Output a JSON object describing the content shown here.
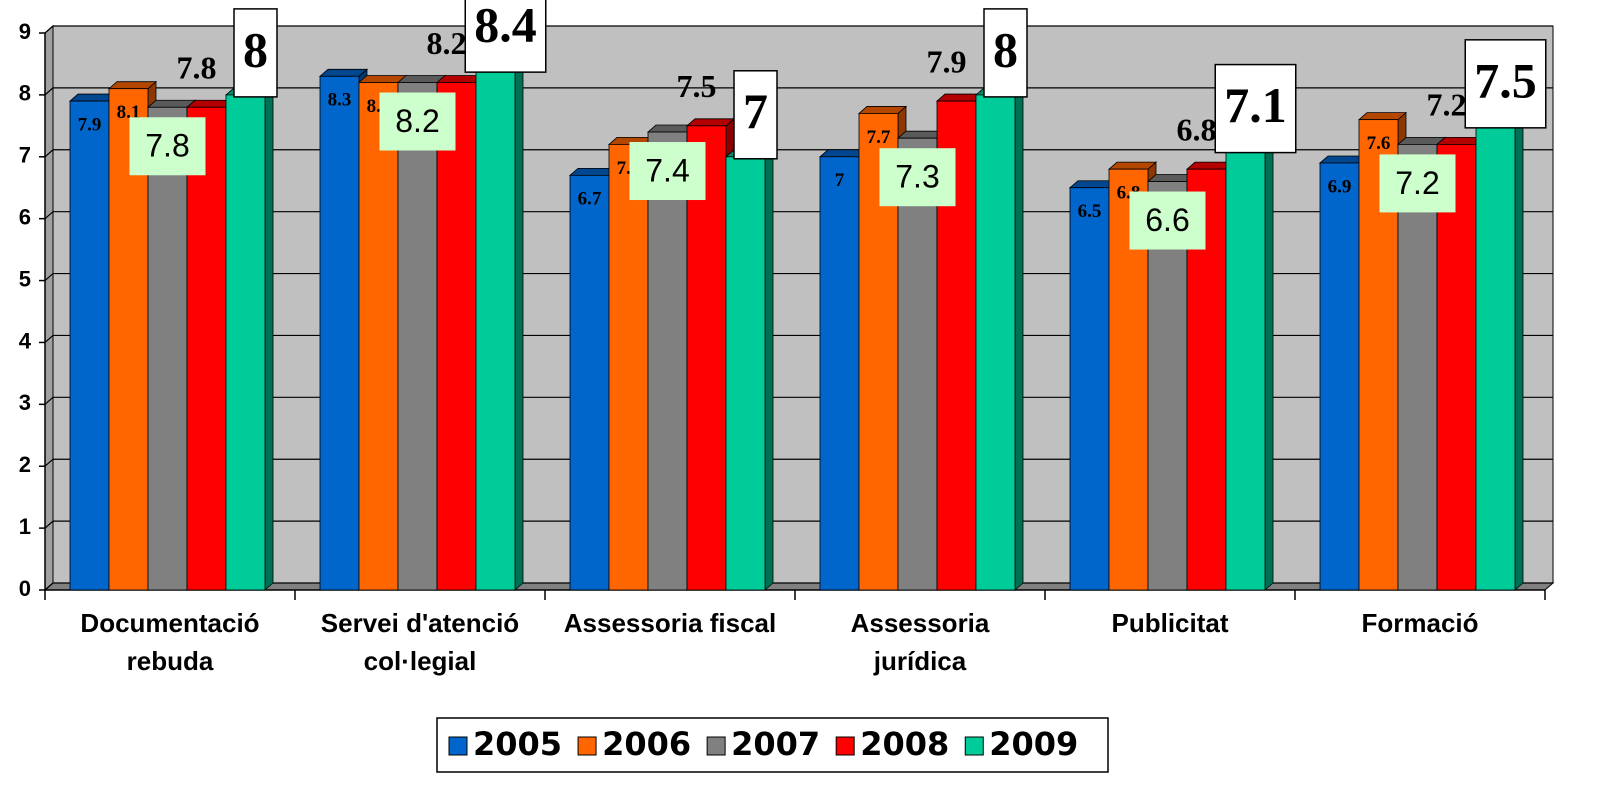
{
  "chart_data": {
    "type": "bar3d",
    "categories": [
      [
        "Documentació",
        "rebuda"
      ],
      [
        "Servei d'atenció",
        "col·legial"
      ],
      [
        "Assessoria fiscal"
      ],
      [
        "Assessoria",
        "jurídica"
      ],
      [
        "Publicitat"
      ],
      [
        "Formació"
      ]
    ],
    "series": [
      {
        "name": "2005",
        "color": "#0066cc",
        "values": [
          7.9,
          8.3,
          6.7,
          7,
          6.5,
          6.9
        ]
      },
      {
        "name": "2006",
        "color": "#ff6600",
        "values": [
          8.1,
          8.2,
          7.2,
          7.7,
          6.8,
          7.6
        ]
      },
      {
        "name": "2007",
        "color": "#808080",
        "values": [
          7.8,
          8.2,
          7.4,
          7.3,
          6.6,
          7.2
        ]
      },
      {
        "name": "2008",
        "color": "#ff0000",
        "values": [
          7.8,
          8.2,
          7.5,
          7.9,
          6.8,
          7.2
        ]
      },
      {
        "name": "2009",
        "color": "#00cc99",
        "values": [
          8,
          8.4,
          7,
          8,
          7.1,
          7.5
        ]
      }
    ],
    "ylim": [
      0,
      9
    ],
    "yticks": [
      0,
      1,
      2,
      3,
      4,
      5,
      6,
      7,
      8,
      9
    ],
    "grid": true,
    "legend": "bottom"
  }
}
